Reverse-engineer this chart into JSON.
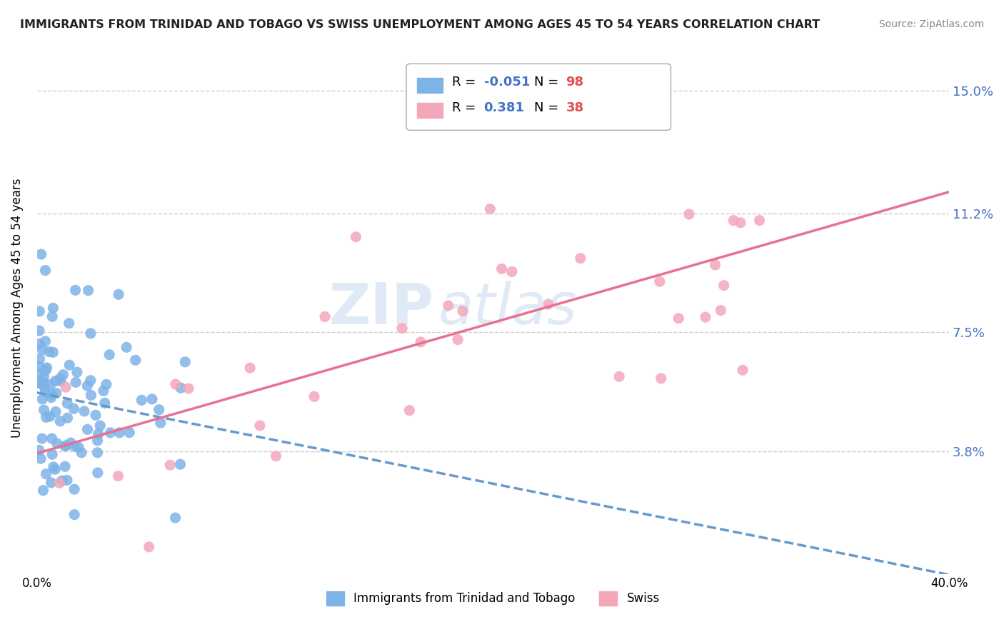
{
  "title": "IMMIGRANTS FROM TRINIDAD AND TOBAGO VS SWISS UNEMPLOYMENT AMONG AGES 45 TO 54 YEARS CORRELATION CHART",
  "source": "Source: ZipAtlas.com",
  "ylabel": "Unemployment Among Ages 45 to 54 years",
  "xmin": 0.0,
  "xmax": 0.4,
  "ymin": 0.0,
  "ymax": 0.165,
  "blue_color": "#7eb3e8",
  "pink_color": "#f4a7bb",
  "trend_blue_color": "#6699cc",
  "trend_pink_color": "#e87090",
  "ytick_vals": [
    0.038,
    0.075,
    0.112,
    0.15
  ],
  "ytick_labels": [
    "3.8%",
    "7.5%",
    "11.2%",
    "15.0%"
  ],
  "legend_r1_val": "-0.051",
  "legend_n1_val": "98",
  "legend_r2_val": "0.381",
  "legend_n2_val": "38",
  "watermark_zip": "ZIP",
  "watermark_atlas": "atlas",
  "legend_label1": "Immigrants from Trinidad and Tobago",
  "legend_label2": "Swiss",
  "val_color": "#4472c4",
  "n_color": "#e05050",
  "grid_color": "#cccccc",
  "title_color": "#222222",
  "source_color": "#888888"
}
